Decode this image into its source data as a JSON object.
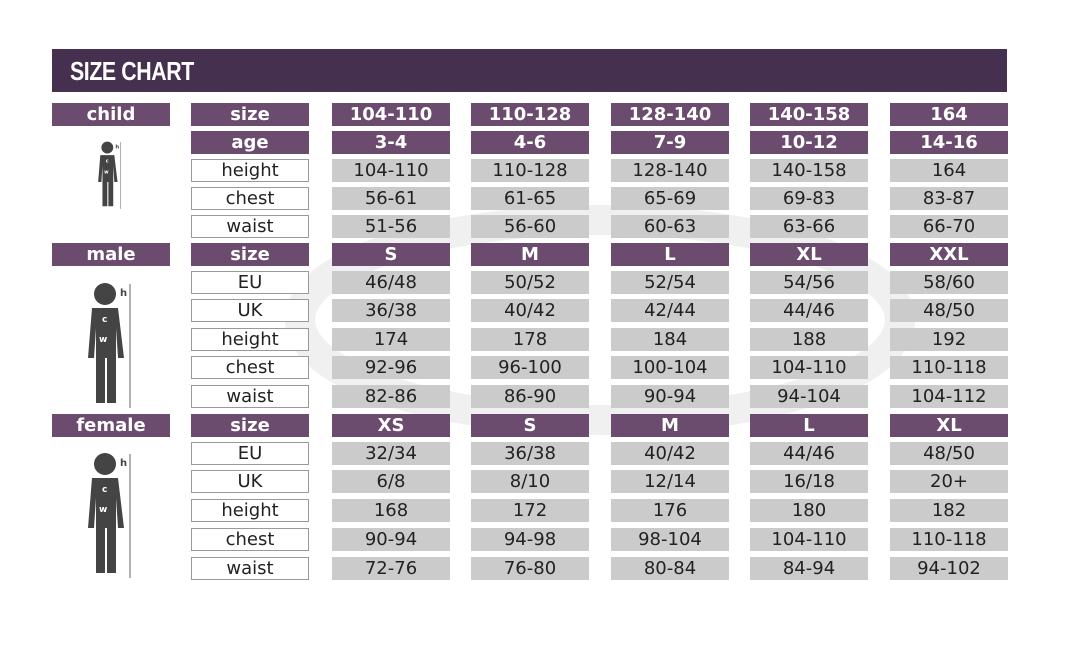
{
  "title": "SIZE CHART",
  "colors": {
    "header": "#45304f",
    "label": "#6b4c6e",
    "value": "#cbcbcb"
  },
  "sections": [
    {
      "name": "child",
      "size_label": "size",
      "sizes": [
        "104-110",
        "110-128",
        "128-140",
        "140-158",
        "164"
      ],
      "rows": [
        {
          "label": "age",
          "purple": true,
          "values": [
            "3-4",
            "4-6",
            "7-9",
            "10-12",
            "14-16"
          ]
        },
        {
          "label": "height",
          "values": [
            "104-110",
            "110-128",
            "128-140",
            "140-158",
            "164"
          ]
        },
        {
          "label": "chest",
          "values": [
            "56-61",
            "61-65",
            "65-69",
            "69-83",
            "83-87"
          ]
        },
        {
          "label": "waist",
          "values": [
            "51-56",
            "56-60",
            "60-63",
            "63-66",
            "66-70"
          ]
        }
      ]
    },
    {
      "name": "male",
      "size_label": "size",
      "sizes": [
        "S",
        "M",
        "L",
        "XL",
        "XXL"
      ],
      "rows": [
        {
          "label": "EU",
          "values": [
            "46/48",
            "50/52",
            "52/54",
            "54/56",
            "58/60"
          ]
        },
        {
          "label": "UK",
          "values": [
            "36/38",
            "40/42",
            "42/44",
            "44/46",
            "48/50"
          ]
        },
        {
          "label": "height",
          "values": [
            "174",
            "178",
            "184",
            "188",
            "192"
          ]
        },
        {
          "label": "chest",
          "values": [
            "92-96",
            "96-100",
            "100-104",
            "104-110",
            "110-118"
          ]
        },
        {
          "label": "waist",
          "values": [
            "82-86",
            "86-90",
            "90-94",
            "94-104",
            "104-112"
          ]
        }
      ]
    },
    {
      "name": "female",
      "size_label": "size",
      "sizes": [
        "XS",
        "S",
        "M",
        "L",
        "XL"
      ],
      "rows": [
        {
          "label": "EU",
          "values": [
            "32/34",
            "36/38",
            "40/42",
            "44/46",
            "48/50"
          ]
        },
        {
          "label": "UK",
          "values": [
            "6/8",
            "8/10",
            "12/14",
            "16/18",
            "20+"
          ]
        },
        {
          "label": "height",
          "values": [
            "168",
            "172",
            "176",
            "180",
            "182"
          ]
        },
        {
          "label": "chest",
          "values": [
            "90-94",
            "94-98",
            "98-104",
            "104-110",
            "110-118"
          ]
        },
        {
          "label": "waist",
          "values": [
            "72-76",
            "76-80",
            "80-84",
            "84-94",
            "94-102"
          ]
        }
      ]
    }
  ],
  "figure_labels": {
    "h": "h",
    "c": "c",
    "w": "w"
  }
}
